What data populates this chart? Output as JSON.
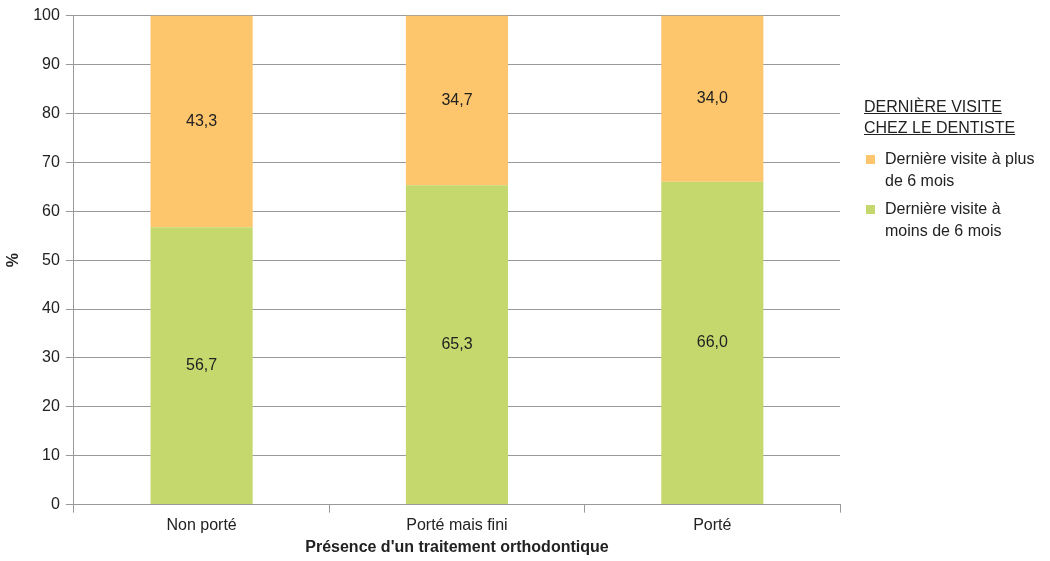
{
  "chart_data": {
    "type": "bar",
    "stacked": true,
    "xlabel": "Présence d'un traitement orthodontique",
    "ylabel": "%",
    "legend_title": "DERNIÈRE VISITE CHEZ LE DENTISTE",
    "legend": "right",
    "categories": [
      "Non porté",
      "Porté mais fini",
      "Porté"
    ],
    "series": [
      {
        "name": "Dernière visite à moins de 6 mois",
        "color": "#c5d86d",
        "values": [
          56.7,
          65.3,
          66.0
        ],
        "value_labels": [
          "56,7",
          "65,3",
          "66,0"
        ]
      },
      {
        "name": "Dernière visite à plus de 6 mois",
        "color": "#fdc56c",
        "values": [
          43.3,
          34.7,
          34.0
        ],
        "value_labels": [
          "43,3",
          "34,7",
          "34,0"
        ]
      }
    ],
    "ylim": [
      0,
      100
    ],
    "yticks": [
      0,
      10,
      20,
      30,
      40,
      50,
      60,
      70,
      80,
      90,
      100
    ],
    "grid": "y"
  }
}
